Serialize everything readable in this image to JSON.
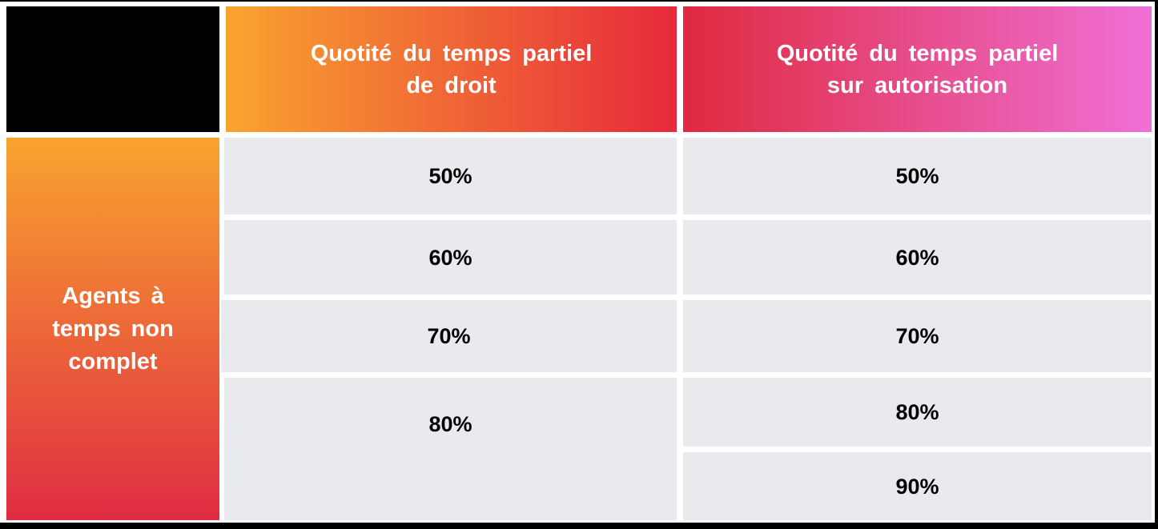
{
  "colors": {
    "grad_orange": "#F9A42F",
    "grad_red": "#E7293C",
    "grad_red2": "#DF2A3F",
    "grad_pink": "#EF70D7",
    "grad_crimson": "#DF2C42",
    "cell_bg": "#E8EAED",
    "frame": "#000000",
    "text_light": "#FFFFFF",
    "text_dark": "#000000"
  },
  "table": {
    "corner_label": "",
    "row_group_label": "Agents à\ntemps non\ncomplet",
    "columns": [
      {
        "header": "Quotité du temps partiel\nde droit",
        "values": [
          "50%",
          "60%",
          "70%",
          "80%"
        ]
      },
      {
        "header": "Quotité du temps partiel\nsur autorisation",
        "values": [
          "50%",
          "60%",
          "70%",
          "80%",
          "90%"
        ]
      }
    ]
  }
}
